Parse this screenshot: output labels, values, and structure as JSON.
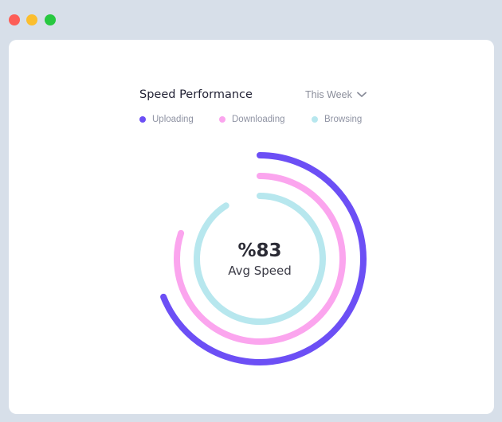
{
  "window": {
    "controls": [
      {
        "name": "close",
        "color": "#fd5e57"
      },
      {
        "name": "minimize",
        "color": "#fbbe2e"
      },
      {
        "name": "maximize",
        "color": "#27c840"
      }
    ]
  },
  "widget": {
    "title": "Speed Performance",
    "period_selector": {
      "selected": "This Week",
      "icon": "chevron-down-icon"
    },
    "legend": [
      {
        "label": "Uploading",
        "color": "#6c4ff5"
      },
      {
        "label": "Downloading",
        "color": "#fba5ee"
      },
      {
        "label": "Browsing",
        "color": "#b7e7ee"
      }
    ],
    "center": {
      "value": "%83",
      "label": "Avg Speed"
    }
  },
  "chart_data": {
    "type": "radial-bar",
    "series": [
      {
        "name": "Uploading",
        "color": "#6c4ff5",
        "fraction": 0.69
      },
      {
        "name": "Downloading",
        "color": "#fba5ee",
        "fraction": 0.8
      },
      {
        "name": "Browsing",
        "color": "#b7e7ee",
        "fraction": 0.91
      }
    ]
  }
}
